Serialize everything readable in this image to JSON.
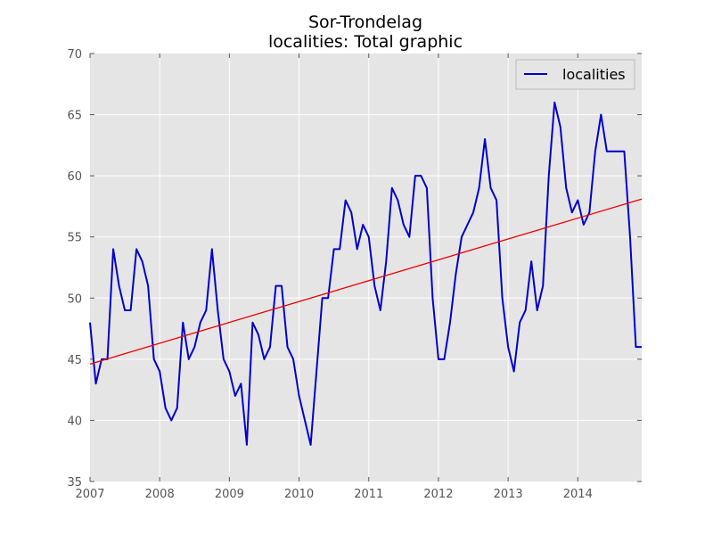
{
  "chart_data": {
    "type": "line",
    "title": "Sor-Trondelag",
    "subtitle": "localities: Total graphic",
    "xlabel": "",
    "ylabel": "",
    "xlim": [
      2007.0,
      2014.917
    ],
    "ylim": [
      35,
      70
    ],
    "x_ticks": [
      2007,
      2008,
      2009,
      2010,
      2011,
      2012,
      2013,
      2014
    ],
    "y_ticks": [
      35,
      40,
      45,
      50,
      55,
      60,
      65,
      70
    ],
    "grid": true,
    "legend_position": "top-right",
    "series": [
      {
        "name": "localities",
        "color": "#0000cc",
        "x_start": 2007.0,
        "x_step_months": 1,
        "values": [
          48,
          43,
          45,
          45,
          54,
          51,
          49,
          49,
          54,
          53,
          51,
          45,
          44,
          41,
          40,
          41,
          48,
          45,
          46,
          48,
          49,
          54,
          49,
          45,
          44,
          42,
          43,
          38,
          48,
          47,
          45,
          46,
          51,
          51,
          46,
          45,
          42,
          40,
          38,
          44,
          50,
          50,
          54,
          54,
          58,
          57,
          54,
          56,
          55,
          51,
          49,
          53,
          59,
          58,
          56,
          55,
          60,
          60,
          59,
          50,
          45,
          45,
          48,
          52,
          55,
          56,
          57,
          59,
          63,
          59,
          58,
          50,
          46,
          44,
          48,
          49,
          53,
          49,
          51,
          60,
          66,
          64,
          59,
          57,
          58,
          56,
          57,
          62,
          65,
          62,
          62,
          62,
          62,
          55,
          46,
          46
        ]
      }
    ],
    "trend_line": {
      "color": "#ee0000",
      "x": [
        2007.0,
        2014.917
      ],
      "y": [
        44.6,
        58.1
      ]
    }
  }
}
